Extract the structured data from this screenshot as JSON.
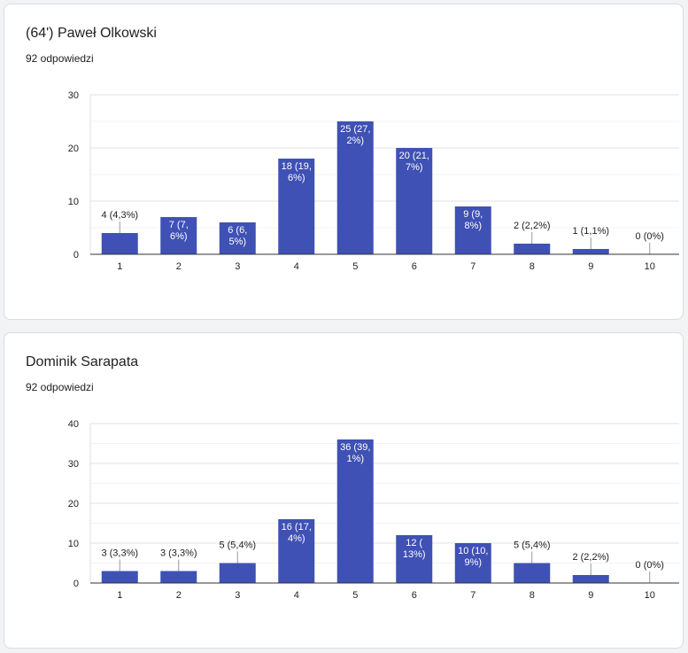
{
  "questions": [
    {
      "title": "(64') Paweł Olkowski",
      "responses": "92 odpowiedzi"
    },
    {
      "title": "Dominik Sarapata",
      "responses": "92 odpowiedzi"
    }
  ],
  "chart_data": [
    {
      "type": "bar",
      "categories": [
        "1",
        "2",
        "3",
        "4",
        "5",
        "6",
        "7",
        "8",
        "9",
        "10"
      ],
      "values": [
        4,
        7,
        6,
        18,
        25,
        20,
        9,
        2,
        1,
        0
      ],
      "data_labels": [
        [
          "4 (4,3%)"
        ],
        [
          "7 (7,",
          "6%)"
        ],
        [
          "6 (6,",
          "5%)"
        ],
        [
          "18 (19,",
          "6%)"
        ],
        [
          "25 (27,",
          "2%)"
        ],
        [
          "20 (21,",
          "7%)"
        ],
        [
          "9 (9,",
          "8%)"
        ],
        [
          "2 (2,2%)"
        ],
        [
          "1 (1,1%)"
        ],
        [
          "0 (0%)"
        ]
      ],
      "y_ticks": [
        0,
        10,
        20,
        30
      ],
      "ylim": [
        0,
        30
      ],
      "bar_color": "#3f51b5"
    },
    {
      "type": "bar",
      "categories": [
        "1",
        "2",
        "3",
        "4",
        "5",
        "6",
        "7",
        "8",
        "9",
        "10"
      ],
      "values": [
        3,
        3,
        5,
        16,
        36,
        12,
        10,
        5,
        2,
        0
      ],
      "data_labels": [
        [
          "3 (3,3%)"
        ],
        [
          "3 (3,3%)"
        ],
        [
          "5 (5,4%)"
        ],
        [
          "16 (17,",
          "4%)"
        ],
        [
          "36 (39,",
          "1%)"
        ],
        [
          "12 (",
          "13%)"
        ],
        [
          "10 (10,",
          "9%)"
        ],
        [
          "5 (5,4%)"
        ],
        [
          "2 (2,2%)"
        ],
        [
          "0 (0%)"
        ]
      ],
      "y_ticks": [
        0,
        10,
        20,
        30,
        40
      ],
      "ylim": [
        0,
        40
      ],
      "bar_color": "#3f51b5"
    }
  ]
}
